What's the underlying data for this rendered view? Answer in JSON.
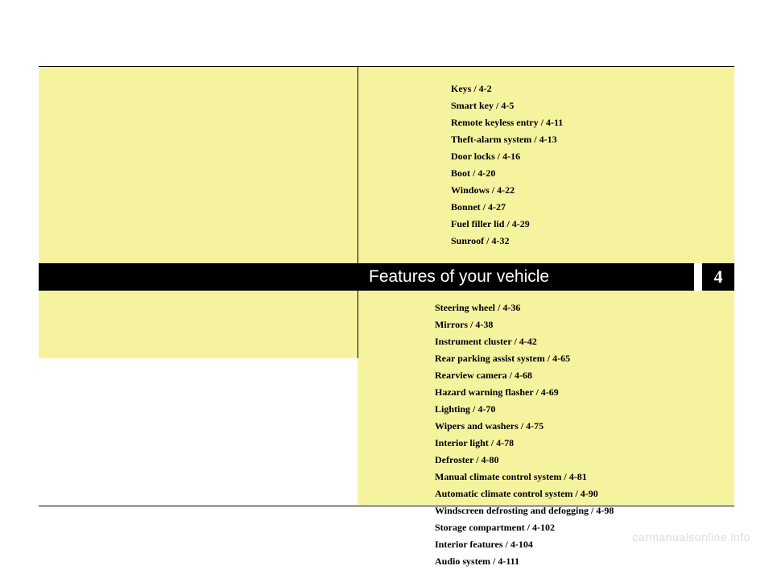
{
  "section": {
    "title": "Features of your vehicle",
    "number": "4"
  },
  "toc_top": [
    "Keys / 4-2",
    "Smart key / 4-5",
    "Remote keyless entry / 4-11",
    "Theft-alarm system / 4-13",
    "Door locks / 4-16",
    "Boot / 4-20",
    "Windows / 4-22",
    "Bonnet / 4-27",
    "Fuel filler lid / 4-29",
    "Sunroof / 4-32"
  ],
  "toc_bottom": [
    "Steering wheel / 4-36",
    "Mirrors / 4-38",
    "Instrument cluster / 4-42",
    "Rear parking assist system / 4-65",
    "Rearview camera / 4-68",
    "Hazard warning flasher / 4-69",
    "Lighting / 4-70",
    "Wipers and washers / 4-75",
    "Interior light / 4-78",
    "Defroster / 4-80",
    "Manual climate control system / 4-81",
    "Automatic climate control system / 4-90",
    "Windscreen defrosting and defogging / 4-98",
    "Storage compartment / 4-102",
    "Interior features / 4-104",
    "Audio system / 4-111"
  ],
  "watermark": "carmanualsonline.info",
  "colors": {
    "highlight": "#f6f39f",
    "bar": "#000000",
    "page_bg": "#ffffff",
    "watermark": "#dcdcdc"
  }
}
